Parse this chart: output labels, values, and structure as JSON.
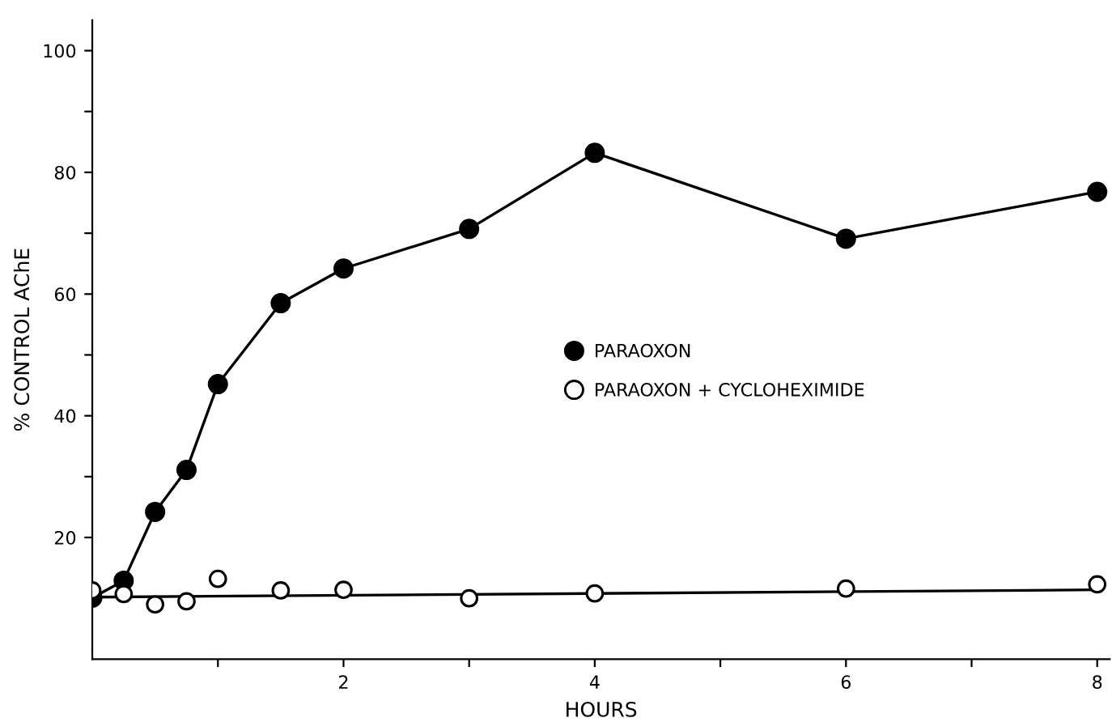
{
  "chart_data": {
    "type": "line",
    "xlabel": "HOURS",
    "ylabel": "% CONTROL AChE",
    "xlim": [
      0,
      8.1
    ],
    "ylim": [
      0,
      105
    ],
    "xticks": [
      {
        "value": 1,
        "label": null
      },
      2,
      {
        "value": 3,
        "label": null
      },
      4,
      {
        "value": 5,
        "label": null
      },
      6,
      {
        "value": 7,
        "label": null
      },
      8
    ],
    "yticks": [
      20,
      {
        "value": 30,
        "label": null
      },
      40,
      {
        "value": 50,
        "label": null
      },
      60,
      {
        "value": 70,
        "label": null
      },
      80,
      {
        "value": 90,
        "label": null
      },
      100
    ],
    "grid": false,
    "legend": "center",
    "marker": "circle",
    "line_style": "solid",
    "series": [
      {
        "name": "PARAOXON",
        "color": "#000000",
        "x": [
          0,
          0.25,
          0.5,
          0.75,
          1,
          1.5,
          2,
          3,
          4,
          6,
          8
        ],
        "values": [
          10.1,
          12.9,
          24.2,
          31.1,
          45.2,
          58.5,
          64.2,
          70.7,
          83.2,
          69.1,
          76.8
        ]
      },
      {
        "name": "PARAOXON + CYCLOHEXIMIDE",
        "type": "scatter",
        "color": "#000000",
        "x": [
          0,
          0.25,
          0.5,
          0.75,
          1,
          1.5,
          2,
          3,
          4,
          6,
          8
        ],
        "values": [
          11.3,
          10.7,
          9.0,
          9.5,
          13.2,
          11.3,
          11.4,
          10.0,
          10.8,
          11.6,
          12.3
        ]
      },
      {
        "type": "line",
        "marker": "none",
        "color": "#000000",
        "x": [
          0,
          8
        ],
        "values": [
          10.2,
          11.4
        ]
      }
    ]
  }
}
